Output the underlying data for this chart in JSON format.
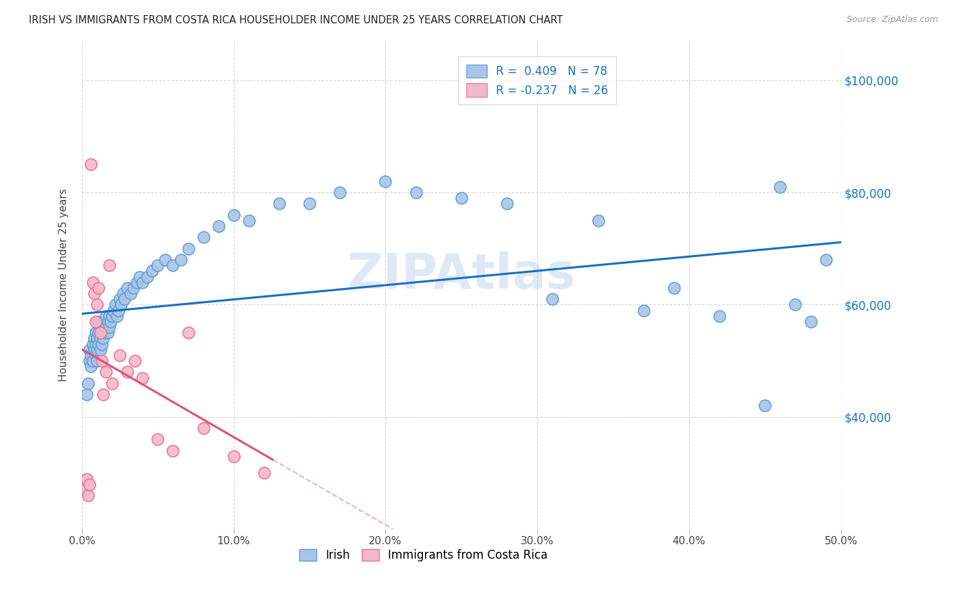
{
  "title": "IRISH VS IMMIGRANTS FROM COSTA RICA HOUSEHOLDER INCOME UNDER 25 YEARS CORRELATION CHART",
  "source": "Source: ZipAtlas.com",
  "ylabel": "Householder Income Under 25 years",
  "xlim": [
    0.0,
    0.5
  ],
  "ylim": [
    20000,
    107000
  ],
  "xtick_labels": [
    "0.0%",
    "10.0%",
    "20.0%",
    "30.0%",
    "40.0%",
    "50.0%"
  ],
  "xtick_vals": [
    0.0,
    0.1,
    0.2,
    0.3,
    0.4,
    0.5
  ],
  "ytick_vals": [
    40000,
    60000,
    80000,
    100000
  ],
  "ytick_labels": [
    "$40,000",
    "$60,000",
    "$80,000",
    "$100,000"
  ],
  "irish_color": "#aac4e8",
  "irish_edge_color": "#5a9fd4",
  "costa_rica_color": "#f4b8c8",
  "costa_rica_edge_color": "#e87090",
  "irish_line_color": "#1a6fc4",
  "costa_rica_line_color": "#e0507a",
  "costa_rica_line_dash_color": "#f0b0c0",
  "watermark": "ZIPAtlas",
  "irish_x": [
    0.003,
    0.004,
    0.005,
    0.005,
    0.006,
    0.006,
    0.007,
    0.007,
    0.008,
    0.008,
    0.009,
    0.009,
    0.009,
    0.01,
    0.01,
    0.01,
    0.011,
    0.011,
    0.011,
    0.012,
    0.012,
    0.013,
    0.013,
    0.013,
    0.014,
    0.014,
    0.015,
    0.015,
    0.016,
    0.016,
    0.017,
    0.017,
    0.018,
    0.018,
    0.019,
    0.02,
    0.021,
    0.022,
    0.023,
    0.024,
    0.025,
    0.026,
    0.027,
    0.028,
    0.03,
    0.032,
    0.034,
    0.036,
    0.038,
    0.04,
    0.043,
    0.046,
    0.05,
    0.055,
    0.06,
    0.065,
    0.07,
    0.08,
    0.09,
    0.1,
    0.11,
    0.13,
    0.15,
    0.17,
    0.2,
    0.22,
    0.25,
    0.28,
    0.31,
    0.34,
    0.37,
    0.39,
    0.42,
    0.45,
    0.46,
    0.47,
    0.48,
    0.49
  ],
  "irish_y": [
    44000,
    46000,
    50000,
    52000,
    49000,
    51000,
    50000,
    53000,
    52000,
    54000,
    51000,
    53000,
    55000,
    50000,
    52000,
    54000,
    53000,
    55000,
    57000,
    52000,
    54000,
    53000,
    55000,
    57000,
    54000,
    56000,
    55000,
    57000,
    56000,
    58000,
    55000,
    57000,
    56000,
    58000,
    57000,
    58000,
    59000,
    60000,
    58000,
    59000,
    61000,
    60000,
    62000,
    61000,
    63000,
    62000,
    63000,
    64000,
    65000,
    64000,
    65000,
    66000,
    67000,
    68000,
    67000,
    68000,
    70000,
    72000,
    74000,
    76000,
    75000,
    78000,
    78000,
    80000,
    82000,
    80000,
    79000,
    78000,
    61000,
    75000,
    59000,
    63000,
    58000,
    42000,
    81000,
    60000,
    57000,
    68000
  ],
  "cr_x": [
    0.002,
    0.003,
    0.004,
    0.005,
    0.006,
    0.007,
    0.008,
    0.009,
    0.01,
    0.011,
    0.012,
    0.013,
    0.014,
    0.016,
    0.018,
    0.02,
    0.025,
    0.03,
    0.035,
    0.04,
    0.05,
    0.06,
    0.07,
    0.08,
    0.1,
    0.12
  ],
  "cr_y": [
    27000,
    29000,
    26000,
    28000,
    85000,
    64000,
    62000,
    57000,
    60000,
    63000,
    55000,
    50000,
    44000,
    48000,
    67000,
    46000,
    51000,
    48000,
    50000,
    47000,
    36000,
    34000,
    55000,
    38000,
    33000,
    30000
  ]
}
